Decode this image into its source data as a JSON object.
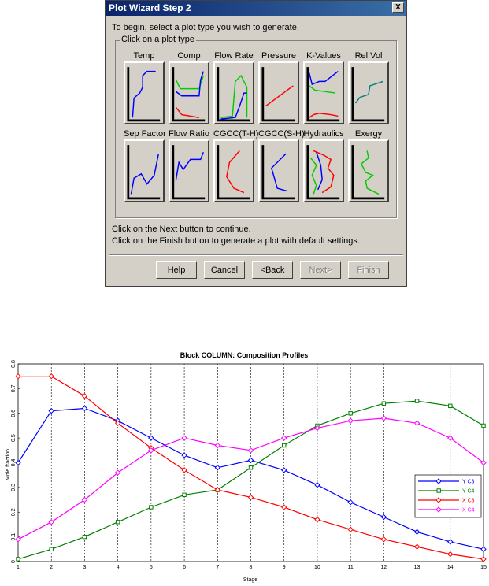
{
  "dialog": {
    "title": "Plot Wizard Step 2",
    "close_glyph": "X",
    "intro_text": "To begin, select a plot type you wish to generate.",
    "group_label": "Click on a plot type",
    "plot_types": [
      {
        "label": "Temp",
        "icon": "temp-profile-icon"
      },
      {
        "label": "Comp",
        "icon": "composition-profile-icon"
      },
      {
        "label": "Flow Rate",
        "icon": "flow-rate-icon"
      },
      {
        "label": "Pressure",
        "icon": "pressure-icon"
      },
      {
        "label": "K-Values",
        "icon": "k-values-icon"
      },
      {
        "label": "Rel Vol",
        "icon": "relative-volatility-icon"
      },
      {
        "label": "Sep Factor",
        "icon": "separation-factor-icon"
      },
      {
        "label": "Flow Ratio",
        "icon": "flow-ratio-icon"
      },
      {
        "label": "CGCC(T-H)",
        "icon": "cgcc-th-icon"
      },
      {
        "label": "CGCC(S-H)",
        "icon": "cgcc-sh-icon"
      },
      {
        "label": "Hydraulics",
        "icon": "hydraulics-icon"
      },
      {
        "label": "Exergy",
        "icon": "exergy-icon"
      }
    ],
    "next_hint": "Click on the Next button to continue.",
    "finish_hint": "Click on the Finish button to generate a plot with default settings.",
    "buttons": {
      "help": "Help",
      "cancel": "Cancel",
      "back": "<Back",
      "next": "Next>",
      "finish": "Finish"
    }
  },
  "chart_data": {
    "type": "line",
    "title": "Block COLUMN: Composition Profiles",
    "xlabel": "Stage",
    "ylabel": "Mole fraction",
    "x": [
      1,
      2,
      3,
      4,
      5,
      6,
      7,
      8,
      9,
      10,
      11,
      12,
      13,
      14,
      15
    ],
    "xlim": [
      1,
      15
    ],
    "ylim": [
      0,
      0.8
    ],
    "yticks": [
      "0",
      "0.1",
      "0.2",
      "0.3",
      "0.4",
      "0.5",
      "0.6",
      "0.7",
      "0.8"
    ],
    "xticks": [
      "1",
      "2",
      "3",
      "4",
      "5",
      "6",
      "7",
      "8",
      "9",
      "10",
      "11",
      "12",
      "13",
      "14",
      "15"
    ],
    "grid": "vertical-dashed",
    "legend_position": "right",
    "series": [
      {
        "name": "Y C3",
        "color": "#0000ff",
        "marker": "diamond",
        "values": [
          0.4,
          0.61,
          0.62,
          0.57,
          0.5,
          0.43,
          0.38,
          0.41,
          0.37,
          0.31,
          0.24,
          0.18,
          0.12,
          0.08,
          0.05
        ]
      },
      {
        "name": "Y C4",
        "color": "#008000",
        "marker": "square",
        "values": [
          0.01,
          0.05,
          0.1,
          0.16,
          0.22,
          0.27,
          0.29,
          0.38,
          0.47,
          0.55,
          0.6,
          0.64,
          0.65,
          0.63,
          0.55
        ]
      },
      {
        "name": "X C3",
        "color": "#ff0000",
        "marker": "diamond",
        "values": [
          0.75,
          0.75,
          0.67,
          0.56,
          0.46,
          0.37,
          0.29,
          0.26,
          0.22,
          0.17,
          0.13,
          0.09,
          0.06,
          0.03,
          0.01
        ]
      },
      {
        "name": "X C4",
        "color": "#ff00ff",
        "marker": "diamond",
        "values": [
          0.09,
          0.16,
          0.25,
          0.36,
          0.45,
          0.5,
          0.47,
          0.45,
          0.5,
          0.54,
          0.57,
          0.58,
          0.56,
          0.5,
          0.4
        ]
      }
    ]
  }
}
